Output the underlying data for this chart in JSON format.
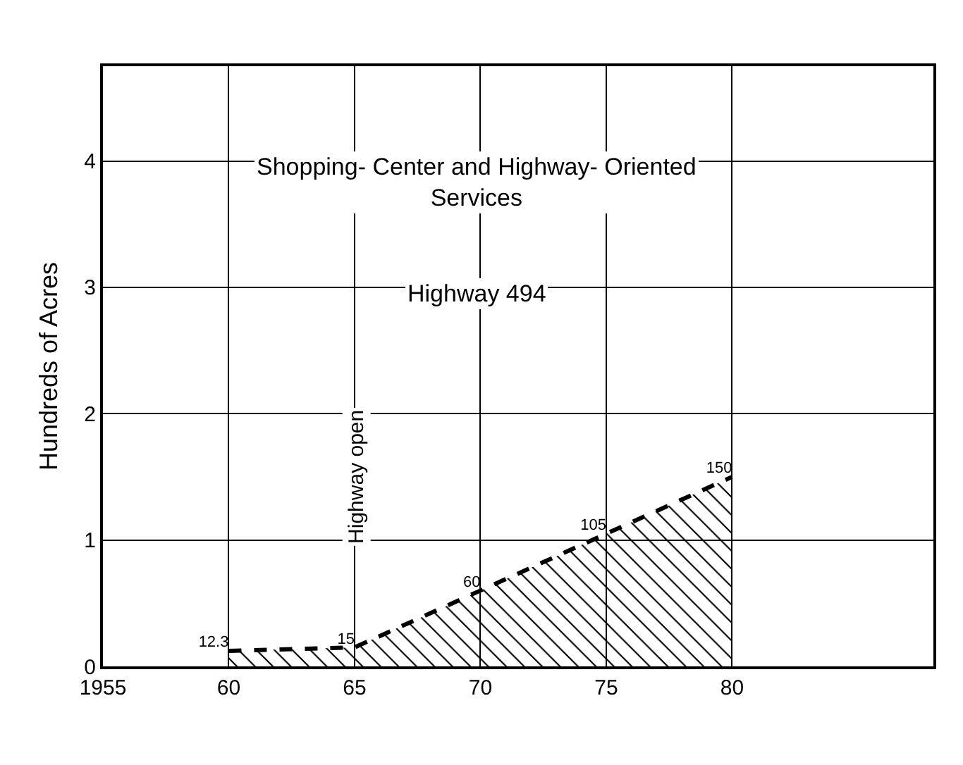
{
  "chart_data": {
    "type": "area",
    "title": "Shopping- Center and Highway- Oriented Services",
    "subtitle": "Highway 494",
    "ylabel": "Hundreds of Acres",
    "x": [
      1960,
      1965,
      1970,
      1975,
      1980
    ],
    "series": [
      {
        "color": "#000000",
        "values": [
          0.123,
          0.15,
          0.6,
          1.05,
          1.5
        ]
      }
    ],
    "value_labels": [
      "12.3",
      "15",
      "60",
      "105",
      "150"
    ],
    "xlim": [
      1955,
      1988
    ],
    "xticks": [
      {
        "value": 1955,
        "label": "1955"
      },
      {
        "value": 1960,
        "label": "60"
      },
      {
        "value": 1965,
        "label": "65"
      },
      {
        "value": 1970,
        "label": "70"
      },
      {
        "value": 1975,
        "label": "75"
      },
      {
        "value": 1980,
        "label": "80"
      }
    ],
    "ylim": [
      0,
      4.75
    ],
    "yticks": [
      0,
      1,
      2,
      3,
      4
    ],
    "annotations": [
      "Highway open"
    ],
    "grid": true,
    "marker": "none",
    "line_style": "dashed"
  }
}
